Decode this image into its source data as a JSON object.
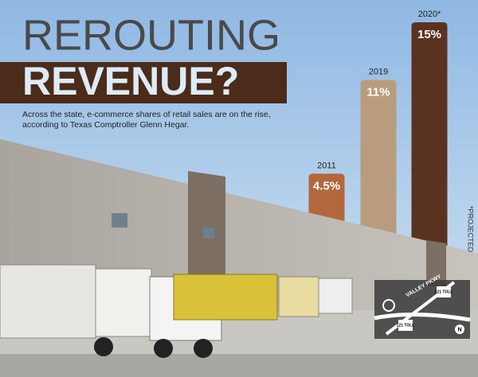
{
  "chart_data": {
    "type": "bar",
    "title": "REROUTING",
    "title_line2": "REVENUE?",
    "subtitle": "Across the state, e-commerce shares of retail sales are on the rise, according to Texas Comptroller Glenn Hegar.",
    "categories": [
      "2011",
      "2019",
      "2020*"
    ],
    "values": [
      4.5,
      11,
      15
    ],
    "value_labels": [
      "4.5%",
      "11%",
      "15%"
    ],
    "colors": [
      "#b3673d",
      "#b99c7e",
      "#5a3320"
    ],
    "note": "*PROJECTED",
    "map_labels": [
      "VALLEY PKWY",
      "121 TOLL",
      "121 TOLL",
      "N"
    ]
  }
}
